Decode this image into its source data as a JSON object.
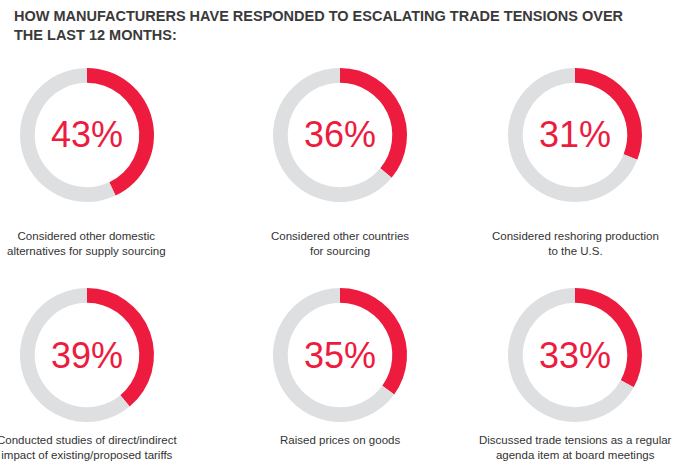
{
  "title": "HOW MANUFACTURERS HAVE RESPONDED TO ESCALATING TRADE TENSIONS OVER\nTHE LAST 12 MONTHS:",
  "chart_data": [
    {
      "type": "pie",
      "label": "Considered other domestic\nalternatives for supply sourcing",
      "values": [
        43,
        57
      ],
      "value_labels": [
        "43%",
        null
      ],
      "data_labels": true,
      "colors": [
        "#ed1c3f",
        "#dedfe0"
      ]
    },
    {
      "type": "pie",
      "label": "Considered other countries\nfor sourcing",
      "values": [
        36,
        64
      ],
      "value_labels": [
        "36%",
        null
      ],
      "data_labels": true,
      "colors": [
        "#ed1c3f",
        "#dedfe0"
      ]
    },
    {
      "type": "pie",
      "label": "Considered reshoring production\nto the U.S.",
      "values": [
        31,
        69
      ],
      "value_labels": [
        "31%",
        null
      ],
      "data_labels": true,
      "colors": [
        "#ed1c3f",
        "#dedfe0"
      ]
    },
    {
      "type": "pie",
      "label": "Conducted studies of direct/indirect\nimpact of existing/proposed tariffs",
      "values": [
        39,
        61
      ],
      "value_labels": [
        "39%",
        null
      ],
      "data_labels": true,
      "colors": [
        "#ed1c3f",
        "#dedfe0"
      ]
    },
    {
      "type": "pie",
      "label": "Raised prices on goods",
      "values": [
        35,
        65
      ],
      "value_labels": [
        "35%",
        null
      ],
      "data_labels": true,
      "colors": [
        "#ed1c3f",
        "#dedfe0"
      ]
    },
    {
      "type": "pie",
      "label": "Discussed trade tensions as a regular\nagenda item at board meetings",
      "values": [
        33,
        67
      ],
      "value_labels": [
        "33%",
        null
      ],
      "data_labels": true,
      "colors": [
        "#ed1c3f",
        "#dedfe0"
      ]
    }
  ]
}
